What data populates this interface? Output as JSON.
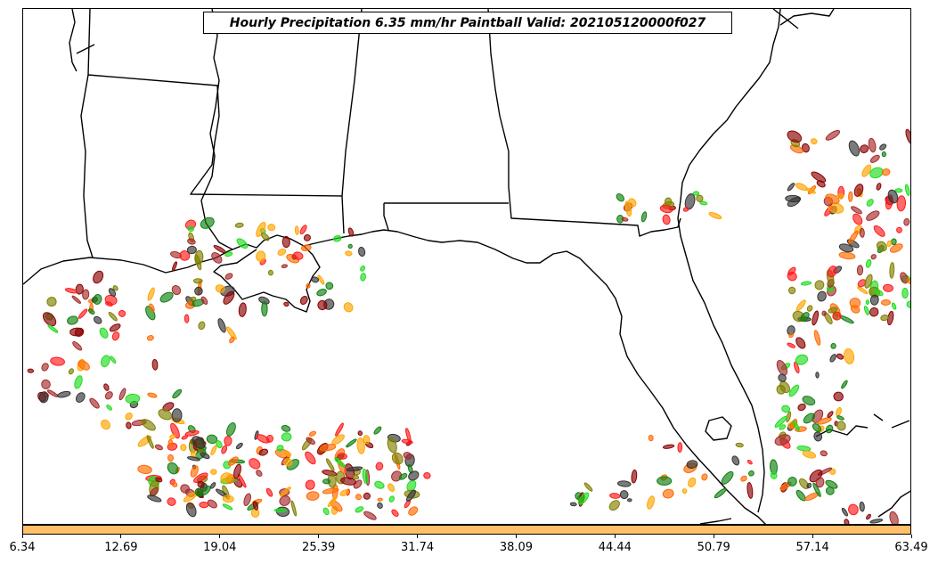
{
  "title": "Hourly Precipitation 6.35 mm/hr Paintball Valid: 202105120000f027",
  "colorbar": {
    "color": "#ffbf69",
    "ticks": [
      "6.34",
      "12.69",
      "19.04",
      "25.39",
      "31.74",
      "38.09",
      "44.44",
      "50.79",
      "57.14",
      "63.49"
    ]
  },
  "palette": {
    "member_colors": [
      "#8b0000",
      "#ff1a1a",
      "#ff6a00",
      "#ffa500",
      "#808000",
      "#1fdc1f",
      "#0f7f0f",
      "#333333",
      "#a52a2a"
    ]
  }
}
